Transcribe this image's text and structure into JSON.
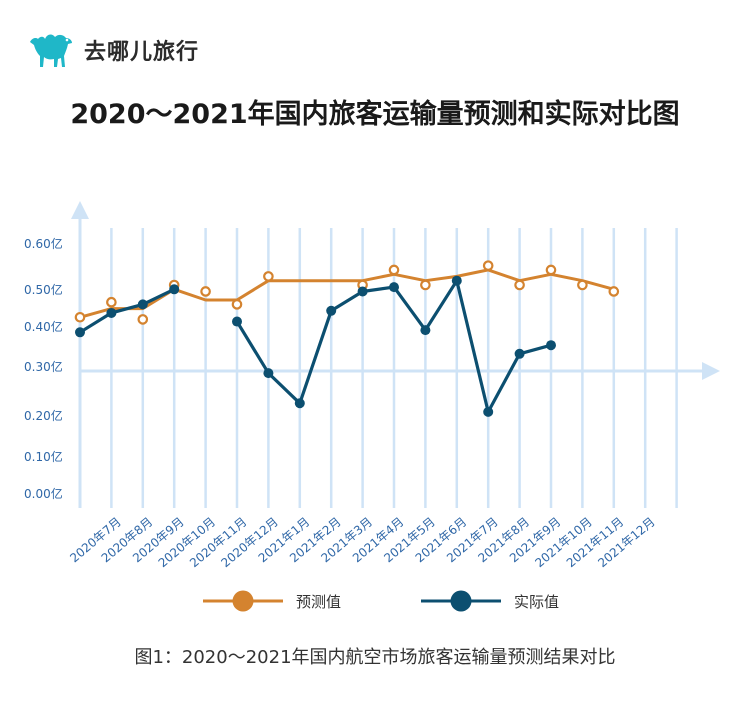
{
  "brand": {
    "name": "去哪儿旅行",
    "logo_icon": "camel-icon",
    "logo_color": "#1fb7c8"
  },
  "title": "2020～2021年国内旅客运输量预测和实际对比图",
  "caption": "图1：2020～2021年国内航空市场旅客运输量预测结果对比",
  "chart_data": {
    "type": "line",
    "categories": [
      "2020年7月",
      "2020年8月",
      "2020年9月",
      "2020年10月",
      "2020年11月",
      "2020年12月",
      "2021年1月",
      "2021年2月",
      "2021年3月",
      "2021年4月",
      "2021年5月",
      "2021年6月",
      "2021年7月",
      "2021年8月",
      "2021年9月",
      "2021年10月",
      "2021年11月",
      "2021年12月"
    ],
    "y_ticks": [
      "0.00亿",
      "0.10亿",
      "0.20亿",
      "0.30亿",
      "0.40亿",
      "0.50亿",
      "0.60亿"
    ],
    "ylim": [
      0,
      0.6
    ],
    "grid": "vertical",
    "legend_position": "bottom",
    "series": [
      {
        "name": "预测值",
        "color": "#d4832f",
        "line_values": [
          0.425,
          0.445,
          0.445,
          0.49,
          0.465,
          0.465,
          0.51,
          0.51,
          0.51,
          0.51,
          0.525,
          0.51,
          0.52,
          0.535,
          0.51,
          0.525,
          0.51,
          0.49
        ],
        "marker_values": [
          0.425,
          0.46,
          0.42,
          0.5,
          0.485,
          0.455,
          0.52,
          null,
          null,
          0.5,
          0.535,
          0.5,
          null,
          0.545,
          0.5,
          0.535,
          0.5,
          0.485
        ]
      },
      {
        "name": "实际值",
        "color": "#0c4f70",
        "line_values": [
          0.39,
          0.435,
          0.455,
          0.49,
          null,
          0.415,
          0.295,
          0.225,
          0.44,
          0.485,
          0.495,
          0.395,
          0.51,
          0.205,
          0.34,
          0.36,
          null,
          null
        ],
        "marker_values": [
          0.39,
          0.435,
          0.455,
          0.49,
          null,
          0.415,
          0.295,
          0.225,
          0.44,
          0.485,
          0.495,
          0.395,
          0.51,
          0.205,
          0.34,
          0.36,
          null,
          null
        ]
      }
    ]
  }
}
